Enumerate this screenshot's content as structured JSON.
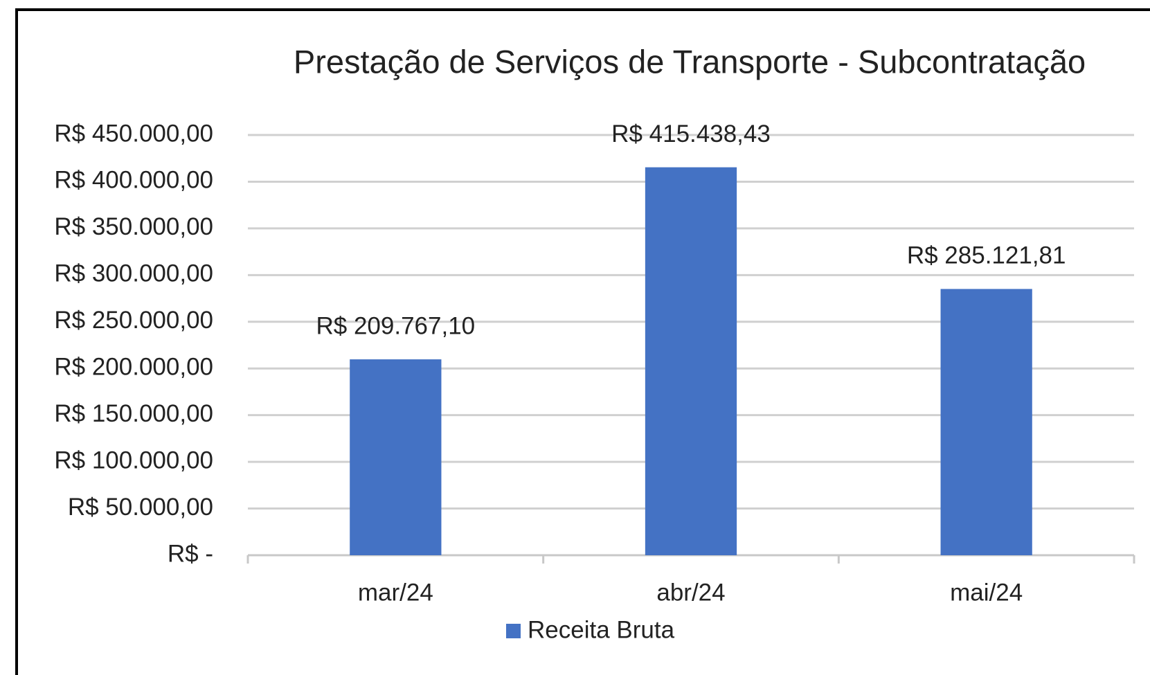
{
  "chart_data": {
    "type": "bar",
    "title": "Prestação de Serviços de Transporte - Subcontratação",
    "categories": [
      "mar/24",
      "abr/24",
      "mai/24"
    ],
    "series": [
      {
        "name": "Receita Bruta",
        "color": "#4472c4",
        "values": [
          209767.1,
          415438.43,
          285121.81
        ],
        "value_labels": [
          "R$ 209.767,10",
          "R$ 415.438,43",
          "R$ 285.121,81"
        ]
      }
    ],
    "ylim": [
      0,
      450000
    ],
    "yticks": [
      {
        "value": 0,
        "label": "R$ -"
      },
      {
        "value": 50000,
        "label": "R$ 50.000,00"
      },
      {
        "value": 100000,
        "label": "R$ 100.000,00"
      },
      {
        "value": 150000,
        "label": "R$ 150.000,00"
      },
      {
        "value": 200000,
        "label": "R$ 200.000,00"
      },
      {
        "value": 250000,
        "label": "R$ 250.000,00"
      },
      {
        "value": 300000,
        "label": "R$ 300.000,00"
      },
      {
        "value": 350000,
        "label": "R$ 350.000,00"
      },
      {
        "value": 400000,
        "label": "R$ 400.000,00"
      },
      {
        "value": 450000,
        "label": "R$ 450.000,00"
      }
    ],
    "grid": true,
    "legend": "bottom"
  }
}
